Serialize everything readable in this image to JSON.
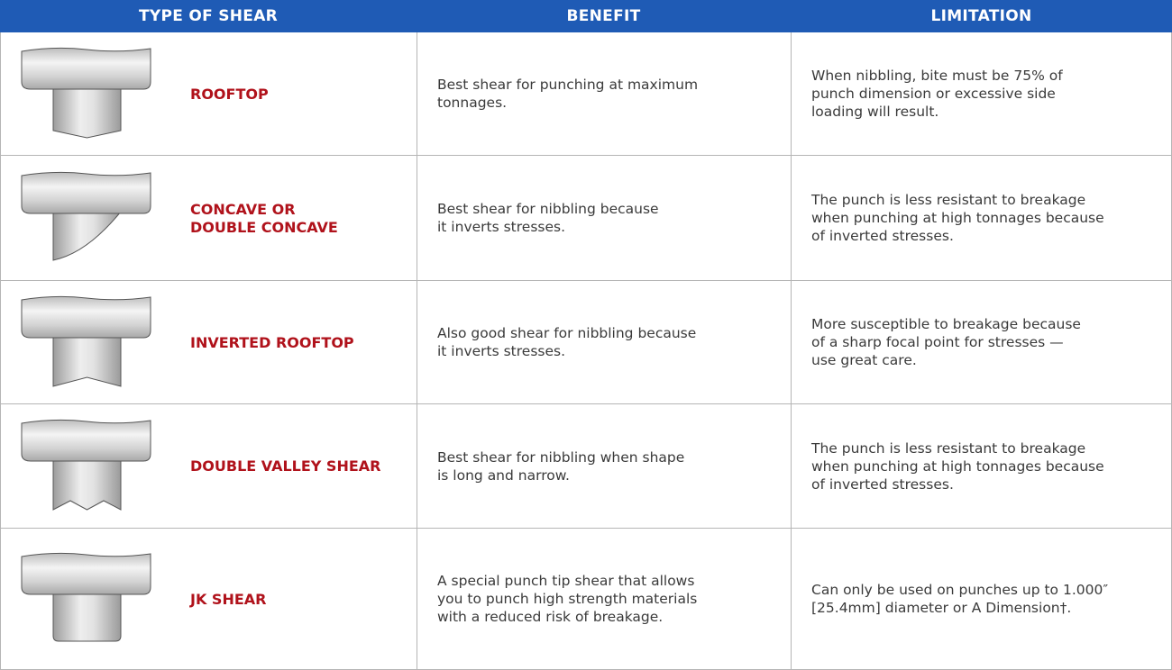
{
  "table": {
    "header": [
      "TYPE OF SHEAR",
      "BENEFIT",
      "LIMITATION"
    ],
    "rows": [
      {
        "type": [
          "ROOFTOP"
        ],
        "benefit": [
          "Best shear for punching at maximum",
          "tonnages."
        ],
        "limitation": [
          "When nibbling, bite must be 75% of",
          "punch dimension or excessive side",
          "loading will result."
        ]
      },
      {
        "type": [
          "CONCAVE OR",
          "DOUBLE CONCAVE"
        ],
        "benefit": [
          "Best shear for nibbling because",
          "it inverts stresses."
        ],
        "limitation": [
          "The punch is less resistant to breakage",
          "when punching at high tonnages because",
          "of inverted stresses."
        ]
      },
      {
        "type": [
          "INVERTED ROOFTOP"
        ],
        "benefit": [
          "Also good shear for nibbling because",
          "it inverts stresses."
        ],
        "limitation": [
          "More susceptible to breakage because",
          "of a sharp focal point for stresses —",
          "use great care."
        ]
      },
      {
        "type": [
          "DOUBLE VALLEY SHEAR"
        ],
        "benefit": [
          "Best shear for nibbling when shape",
          "is long and narrow."
        ],
        "limitation": [
          "The punch is less resistant to breakage",
          "when punching at high tonnages because",
          "of inverted stresses."
        ]
      },
      {
        "type": [
          "JK SHEAR"
        ],
        "benefit": [
          "A special punch tip shear that allows",
          "you to punch high strength materials",
          "with a reduced risk of breakage."
        ],
        "limitation": [
          "Can only be used on punches up to 1.000″",
          "[25.4mm] diameter or A Dimension†."
        ]
      }
    ]
  }
}
